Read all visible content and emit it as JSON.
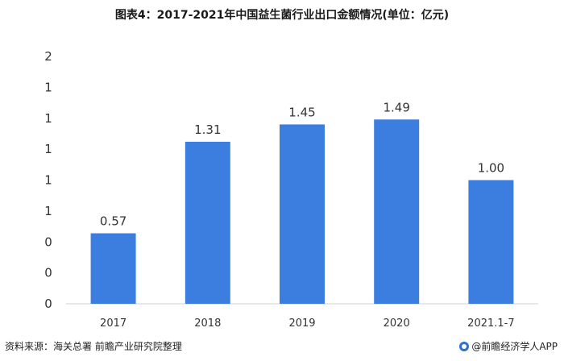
{
  "title": "图表4：2017-2021年中国益生菌行业出口金额情况(单位：亿元)",
  "footer": {
    "source": "资料来源：海关总署 前瞻产业研究院整理",
    "brand": "@前瞻经济学人APP"
  },
  "colors": {
    "bar": "#3c7ee0",
    "axis": "#d0d0d0",
    "text": "#333333"
  },
  "chart_data": {
    "type": "bar",
    "categories": [
      "2017",
      "2018",
      "2019",
      "2020",
      "2021.1-7"
    ],
    "values": [
      0.57,
      1.31,
      1.45,
      1.49,
      1.0
    ],
    "data_labels": [
      "0.57",
      "1.31",
      "1.45",
      "1.49",
      "1.00"
    ],
    "ytick_labels": [
      "0",
      "0",
      "0",
      "1",
      "1",
      "1",
      "1",
      "1",
      "2"
    ],
    "ylim": [
      0,
      2
    ],
    "grid": false,
    "legend": "none"
  }
}
